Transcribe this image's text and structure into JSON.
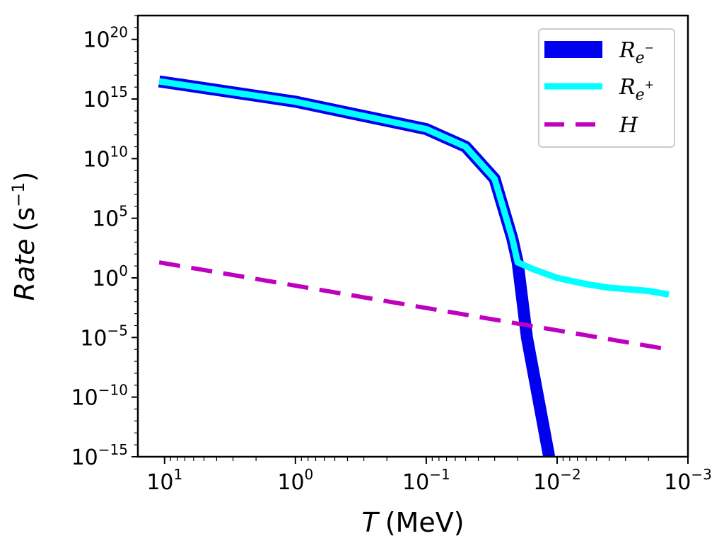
{
  "chart_data": {
    "type": "line",
    "xscale": "log",
    "yscale": "log",
    "xaxis_inverted": true,
    "xlabel_symbol": "T",
    "xlabel_unit": "(MeV)",
    "ylabel_text": "Rate",
    "ylabel_unit_base": "(s",
    "ylabel_unit_sup": "−1",
    "ylabel_unit_close": ")",
    "xlim": [
      16,
      0.001
    ],
    "ylim": [
      1e-15,
      1e+22
    ],
    "x_ticks": [
      {
        "base": "10",
        "exp": "1",
        "value": 10
      },
      {
        "base": "10",
        "exp": "0",
        "value": 1
      },
      {
        "base": "10",
        "exp": "−1",
        "value": 0.1
      },
      {
        "base": "10",
        "exp": "−2",
        "value": 0.01
      },
      {
        "base": "10",
        "exp": "−3",
        "value": 0.001
      }
    ],
    "y_ticks": [
      {
        "base": "10",
        "exp": "20",
        "value": 1e+20
      },
      {
        "base": "10",
        "exp": "15",
        "value": 1000000000000000.0
      },
      {
        "base": "10",
        "exp": "10",
        "value": 10000000000.0
      },
      {
        "base": "10",
        "exp": "5",
        "value": 100000.0
      },
      {
        "base": "10",
        "exp": "0",
        "value": 1
      },
      {
        "base": "10",
        "exp": "−5",
        "value": 1e-05
      },
      {
        "base": "10",
        "exp": "−10",
        "value": 1e-10
      },
      {
        "base": "10",
        "exp": "−15",
        "value": 1e-15
      }
    ],
    "legend": {
      "position": "upper right"
    },
    "series": [
      {
        "name": "R_e-",
        "label_main": "R",
        "label_sub": "e",
        "label_sup": "−",
        "color": "#0000ee",
        "style": "solid-thick",
        "x": [
          11,
          1,
          0.1,
          0.05,
          0.03,
          0.022,
          0.02,
          0.017,
          0.0115
        ],
        "y": [
          3e+16,
          600000000000000.0,
          3000000000000.0,
          100000000000.0,
          200000000.0,
          2000.0,
          20,
          1e-05,
          1e-15
        ]
      },
      {
        "name": "R_e+",
        "label_main": "R",
        "label_sub": "e",
        "label_sup": "+",
        "color": "#00ffff",
        "style": "solid",
        "x": [
          11,
          1,
          0.1,
          0.05,
          0.03,
          0.022,
          0.02,
          0.015,
          0.01,
          0.006,
          0.004,
          0.002,
          0.0014
        ],
        "y": [
          3e+16,
          600000000000000.0,
          3000000000000.0,
          100000000000.0,
          200000000.0,
          2000.0,
          20,
          5,
          1,
          0.3,
          0.15,
          0.08,
          0.04
        ]
      },
      {
        "name": "H",
        "label_main": "H",
        "label_sub": "",
        "label_sup": "",
        "color": "#bf00bf",
        "style": "dashed",
        "x": [
          11,
          0.0014
        ],
        "y": [
          20,
          1e-06
        ]
      }
    ]
  }
}
